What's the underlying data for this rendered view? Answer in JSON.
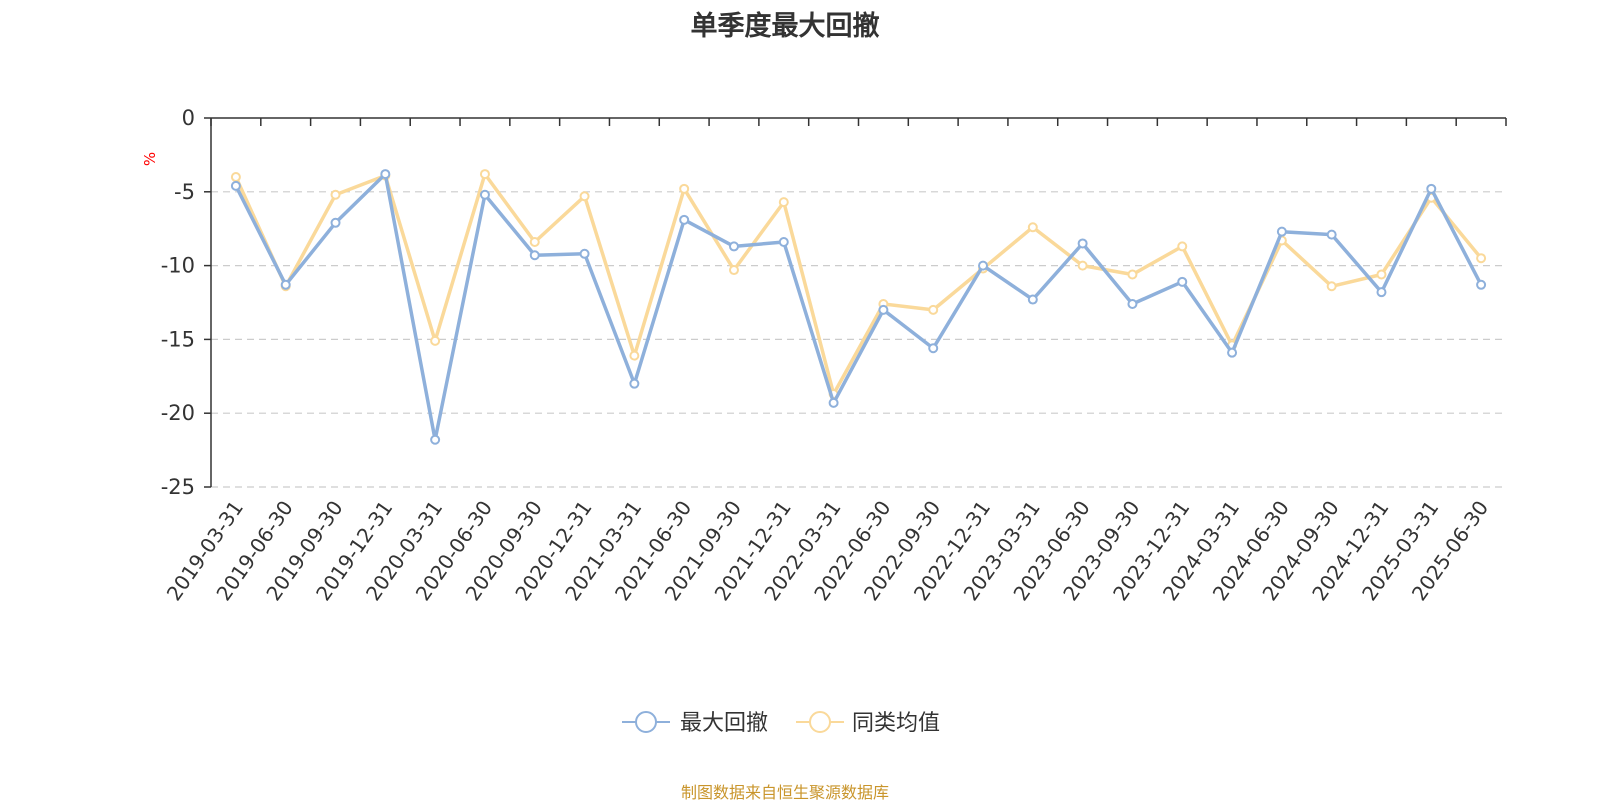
{
  "chart_data": {
    "type": "line",
    "title": "单季度最大回撤",
    "ylabel": "%",
    "ylim": [
      -25,
      0
    ],
    "yticks": [
      0,
      -5,
      -10,
      -15,
      -20,
      -25
    ],
    "grid": true,
    "legend_position": "bottom-center",
    "categories": [
      "2019-03-31",
      "2019-06-30",
      "2019-09-30",
      "2019-12-31",
      "2020-03-31",
      "2020-06-30",
      "2020-09-30",
      "2020-12-31",
      "2021-03-31",
      "2021-06-30",
      "2021-09-30",
      "2021-12-31",
      "2022-03-31",
      "2022-06-30",
      "2022-09-30",
      "2022-12-31",
      "2023-03-31",
      "2023-06-30",
      "2023-09-30",
      "2023-12-31",
      "2024-03-31",
      "2024-06-30",
      "2024-09-30",
      "2024-12-31",
      "2025-03-31",
      "2025-06-30"
    ],
    "series": [
      {
        "name": "最大回撤",
        "color": "#8eb0db",
        "values": [
          -4.6,
          -11.3,
          -7.1,
          -3.8,
          -21.8,
          -5.2,
          -9.3,
          -9.2,
          -18.0,
          -6.9,
          -8.7,
          -8.4,
          -19.3,
          -13.0,
          -15.6,
          -10.0,
          -12.3,
          -8.5,
          -12.6,
          -11.1,
          -15.9,
          -7.7,
          -7.9,
          -11.8,
          -4.8,
          -11.3
        ]
      },
      {
        "name": "同类均值",
        "color": "#fad99a",
        "values": [
          -4.0,
          -11.4,
          -5.2,
          -3.9,
          -15.1,
          -3.8,
          -8.4,
          -5.3,
          -16.1,
          -4.8,
          -10.3,
          -5.7,
          -18.7,
          -12.6,
          -13.0,
          -10.2,
          -7.4,
          -10.0,
          -10.6,
          -8.7,
          -15.4,
          -8.3,
          -11.4,
          -10.6,
          -5.4,
          -9.5
        ]
      }
    ]
  },
  "footer": {
    "source": "制图数据来自恒生聚源数据库"
  },
  "colors": {
    "axis": "#333333",
    "grid": "#cccccc",
    "unit_label": "#ff0000",
    "source_text": "#c9952b"
  }
}
